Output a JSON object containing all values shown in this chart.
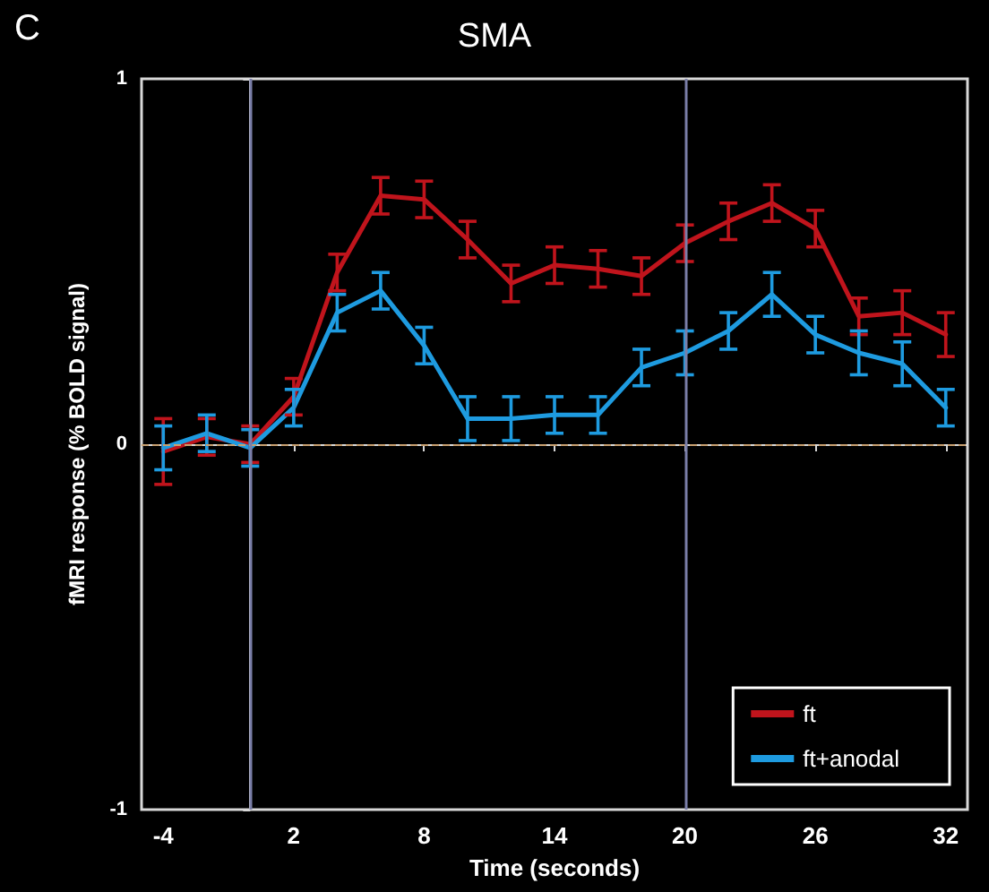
{
  "chart_data": {
    "type": "line",
    "title": "SMA",
    "xlabel": "Time (seconds)",
    "ylabel": "fMRI response (% BOLD signal)",
    "annotations": [
      "C"
    ],
    "xlim": [
      -5,
      33
    ],
    "xticks": [
      -4,
      2,
      8,
      14,
      20,
      26,
      32
    ],
    "ylim": [
      -1,
      1
    ],
    "yticks": [
      -1,
      0,
      1
    ],
    "x": [
      -4,
      -2,
      0,
      2,
      4,
      6,
      8,
      10,
      12,
      14,
      16,
      18,
      20,
      22,
      24,
      26,
      28,
      30,
      32
    ],
    "series": [
      {
        "name": "ft",
        "color": "#c0141c",
        "values": [
          -0.02,
          0.02,
          0.0,
          0.13,
          0.47,
          0.68,
          0.67,
          0.56,
          0.44,
          0.49,
          0.48,
          0.46,
          0.55,
          0.61,
          0.66,
          0.59,
          0.35,
          0.36,
          0.3
        ],
        "errors": [
          0.09,
          0.05,
          0.05,
          0.05,
          0.05,
          0.05,
          0.05,
          0.05,
          0.05,
          0.05,
          0.05,
          0.05,
          0.05,
          0.05,
          0.05,
          0.05,
          0.05,
          0.06,
          0.06
        ]
      },
      {
        "name": "ft+anodal",
        "color": "#1e9be0",
        "values": [
          -0.01,
          0.03,
          -0.01,
          0.1,
          0.36,
          0.42,
          0.27,
          0.07,
          0.07,
          0.08,
          0.08,
          0.21,
          0.25,
          0.31,
          0.41,
          0.3,
          0.25,
          0.22,
          0.1
        ],
        "errors": [
          0.06,
          0.05,
          0.05,
          0.05,
          0.05,
          0.05,
          0.05,
          0.06,
          0.06,
          0.05,
          0.05,
          0.05,
          0.06,
          0.05,
          0.06,
          0.05,
          0.06,
          0.06,
          0.05
        ]
      }
    ],
    "ref_lines": [
      {
        "axis": "y",
        "value": 0,
        "label": null,
        "color": "#c8a070",
        "line_style": "dashed"
      },
      {
        "axis": "x",
        "value": 0,
        "label": null,
        "color": "#7a7ea8",
        "line_style": "solid"
      },
      {
        "axis": "x",
        "value": 20,
        "label": null,
        "color": "#7a7ea8",
        "line_style": "solid"
      }
    ],
    "legend": "bottom right",
    "grid": false,
    "marker": "none",
    "line_style": "solid"
  }
}
